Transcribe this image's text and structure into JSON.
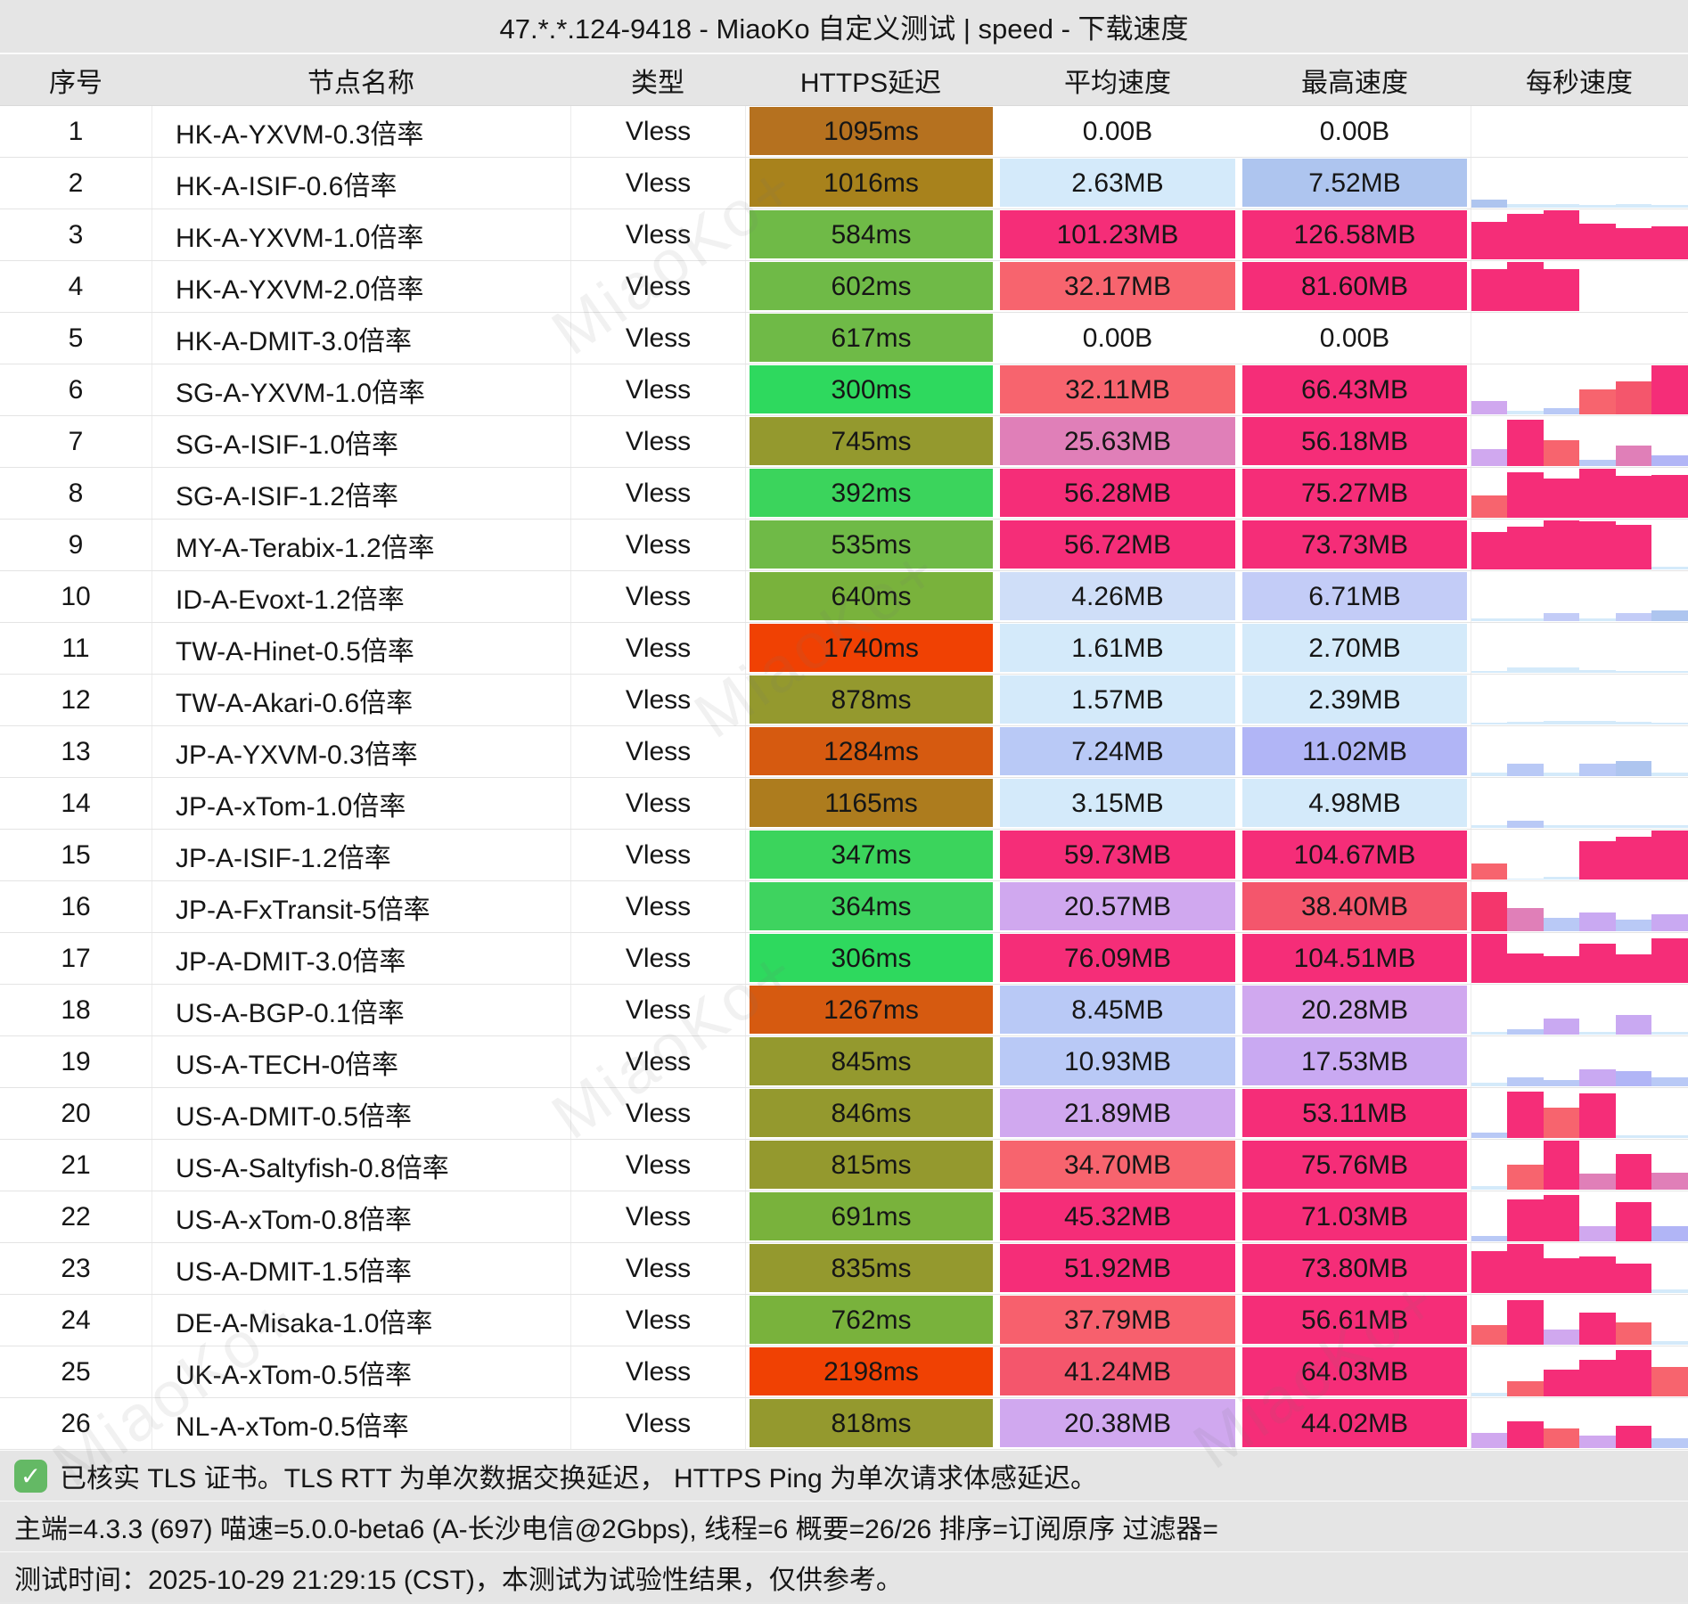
{
  "title": "47.*.*.124-9418 - MiaoKo 自定义测试 | speed - 下载速度",
  "columns": [
    "序号",
    "节点名称",
    "类型",
    "HTTPS延迟",
    "平均速度",
    "最高速度",
    "每秒速度"
  ],
  "watermark": "MiaoKo+",
  "footer": {
    "line1": "已核实 TLS 证书。TLS RTT 为单次数据交换延迟， HTTPS Ping 为单次请求体感延迟。",
    "line2": "主端=4.3.3 (697) 喵速=5.0.0-beta6 (A-长沙电信@2Gbps), 线程=6 概要=26/26 排序=订阅原序 过滤器=",
    "line3": "测试时间：2025-10-29 21:29:15 (CST)，本测试为试验性结果，仅供参考。"
  },
  "rows": [
    {
      "idx": "1",
      "name": "HK-A-YXVM-0.3倍率",
      "type": "Vless",
      "latency": "1095ms",
      "latency_color": "#b5711f",
      "avg": "0.00B",
      "avg_color": "#ffffff",
      "max": "0.00B",
      "max_color": "#ffffff",
      "spark": []
    },
    {
      "idx": "2",
      "name": "HK-A-ISIF-0.6倍率",
      "type": "Vless",
      "latency": "1016ms",
      "latency_color": "#a8821c",
      "avg": "2.63MB",
      "avg_color": "#d4eafa",
      "max": "7.52MB",
      "max_color": "#aec5ef",
      "spark": [
        [
          0.17,
          "#aec5ef"
        ],
        [
          0.08,
          "#d4eafa"
        ],
        [
          0.07,
          "#d4eafa"
        ],
        [
          0.06,
          "#d4eafa"
        ],
        [
          0.07,
          "#d4eafa"
        ],
        [
          0.06,
          "#d4eafa"
        ]
      ]
    },
    {
      "idx": "3",
      "name": "HK-A-YXVM-1.0倍率",
      "type": "Vless",
      "latency": "584ms",
      "latency_color": "#6fba47",
      "avg": "101.23MB",
      "avg_color": "#f52d78",
      "max": "126.58MB",
      "max_color": "#f52d78",
      "spark": [
        [
          0.76,
          "#f52d78"
        ],
        [
          0.92,
          "#f52d78"
        ],
        [
          1,
          "#f52d78"
        ],
        [
          0.72,
          "#f52d78"
        ],
        [
          0.64,
          "#f52d78"
        ],
        [
          0.68,
          "#f52d78"
        ]
      ]
    },
    {
      "idx": "4",
      "name": "HK-A-YXVM-2.0倍率",
      "type": "Vless",
      "latency": "602ms",
      "latency_color": "#6fba47",
      "avg": "32.17MB",
      "avg_color": "#f7646e",
      "max": "81.60MB",
      "max_color": "#f52d78",
      "spark": [
        [
          0.86,
          "#f52d78"
        ],
        [
          1,
          "#f52d78"
        ],
        [
          0.85,
          "#f52d78"
        ],
        [
          0,
          "#ffffff"
        ],
        [
          0,
          "#ffffff"
        ],
        [
          0,
          "#ffffff"
        ]
      ]
    },
    {
      "idx": "5",
      "name": "HK-A-DMIT-3.0倍率",
      "type": "Vless",
      "latency": "617ms",
      "latency_color": "#6fba47",
      "avg": "0.00B",
      "avg_color": "#ffffff",
      "max": "0.00B",
      "max_color": "#ffffff",
      "spark": []
    },
    {
      "idx": "6",
      "name": "SG-A-YXVM-1.0倍率",
      "type": "Vless",
      "latency": "300ms",
      "latency_color": "#2ed95e",
      "avg": "32.11MB",
      "avg_color": "#f7646e",
      "max": "66.43MB",
      "max_color": "#f52d78",
      "spark": [
        [
          0.28,
          "#d0a8ef"
        ],
        [
          0.07,
          "#d4eafa"
        ],
        [
          0.12,
          "#b9c9f6"
        ],
        [
          0.5,
          "#f7646e"
        ],
        [
          0.68,
          "#f4566c"
        ],
        [
          1,
          "#f52d78"
        ]
      ]
    },
    {
      "idx": "7",
      "name": "SG-A-ISIF-1.0倍率",
      "type": "Vless",
      "latency": "745ms",
      "latency_color": "#94992e",
      "avg": "25.63MB",
      "avg_color": "#e07fb8",
      "max": "56.18MB",
      "max_color": "#f52d78",
      "spark": [
        [
          0.35,
          "#d0a8ef"
        ],
        [
          0.95,
          "#f52d78"
        ],
        [
          0.52,
          "#f7646e"
        ],
        [
          0.12,
          "#b9c9f6"
        ],
        [
          0.42,
          "#e07fb8"
        ],
        [
          0.22,
          "#b1b5f6"
        ]
      ]
    },
    {
      "idx": "8",
      "name": "SG-A-ISIF-1.2倍率",
      "type": "Vless",
      "latency": "392ms",
      "latency_color": "#3bd45c",
      "avg": "56.28MB",
      "avg_color": "#f52d78",
      "max": "75.27MB",
      "max_color": "#f52d78",
      "spark": [
        [
          0.46,
          "#f7646e"
        ],
        [
          0.92,
          "#f52d78"
        ],
        [
          0.8,
          "#f52d78"
        ],
        [
          1,
          "#f52d78"
        ],
        [
          0.85,
          "#f52d78"
        ],
        [
          0.88,
          "#f52d78"
        ]
      ]
    },
    {
      "idx": "9",
      "name": "MY-A-Terabix-1.2倍率",
      "type": "Vless",
      "latency": "535ms",
      "latency_color": "#6fba47",
      "avg": "56.72MB",
      "avg_color": "#f52d78",
      "max": "73.73MB",
      "max_color": "#f52d78",
      "spark": [
        [
          0.76,
          "#f52d78"
        ],
        [
          0.88,
          "#f52d78"
        ],
        [
          1,
          "#f52d78"
        ],
        [
          0.98,
          "#f52d78"
        ],
        [
          0.91,
          "#f52d78"
        ],
        [
          0.06,
          "#d4eafa"
        ]
      ]
    },
    {
      "idx": "10",
      "name": "ID-A-Evoxt-1.2倍率",
      "type": "Vless",
      "latency": "640ms",
      "latency_color": "#79b23c",
      "avg": "4.26MB",
      "avg_color": "#cfdef8",
      "max": "6.71MB",
      "max_color": "#c3ccf7",
      "spark": [
        [
          0.06,
          "#d4eafa"
        ],
        [
          0.06,
          "#d4eafa"
        ],
        [
          0.16,
          "#c3ccf7"
        ],
        [
          0.06,
          "#d4eafa"
        ],
        [
          0.17,
          "#c3ccf7"
        ],
        [
          0.21,
          "#aec5ef"
        ]
      ]
    },
    {
      "idx": "11",
      "name": "TW-A-Hinet-0.5倍率",
      "type": "Vless",
      "latency": "1740ms",
      "latency_color": "#f04103",
      "avg": "1.61MB",
      "avg_color": "#d4eafa",
      "max": "2.70MB",
      "max_color": "#d4eafa",
      "spark": [
        [
          0.04,
          "#d4eafa"
        ],
        [
          0.1,
          "#d4eafa"
        ],
        [
          0.1,
          "#d4eafa"
        ],
        [
          0.05,
          "#d4eafa"
        ],
        [
          0.04,
          "#d4eafa"
        ],
        [
          0.04,
          "#d4eafa"
        ]
      ]
    },
    {
      "idx": "12",
      "name": "TW-A-Akari-0.6倍率",
      "type": "Vless",
      "latency": "878ms",
      "latency_color": "#94992e",
      "avg": "1.57MB",
      "avg_color": "#d4eafa",
      "max": "2.39MB",
      "max_color": "#d4eafa",
      "spark": [
        [
          0.04,
          "#d4eafa"
        ],
        [
          0.05,
          "#d4eafa"
        ],
        [
          0.07,
          "#d4eafa"
        ],
        [
          0.07,
          "#d4eafa"
        ],
        [
          0.06,
          "#d4eafa"
        ],
        [
          0.04,
          "#d4eafa"
        ]
      ]
    },
    {
      "idx": "13",
      "name": "JP-A-YXVM-0.3倍率",
      "type": "Vless",
      "latency": "1284ms",
      "latency_color": "#d65a10",
      "avg": "7.24MB",
      "avg_color": "#b9c9f6",
      "max": "11.02MB",
      "max_color": "#b1b5f6",
      "spark": [
        [
          0.08,
          "#d4eafa"
        ],
        [
          0.25,
          "#b9c9f6"
        ],
        [
          0.08,
          "#d4eafa"
        ],
        [
          0.26,
          "#b9c9f6"
        ],
        [
          0.3,
          "#aec5ef"
        ],
        [
          0.08,
          "#d4eafa"
        ]
      ]
    },
    {
      "idx": "14",
      "name": "JP-A-xTom-1.0倍率",
      "type": "Vless",
      "latency": "1165ms",
      "latency_color": "#ad7c1e",
      "avg": "3.15MB",
      "avg_color": "#d4eafa",
      "max": "4.98MB",
      "max_color": "#d4eafa",
      "spark": [
        [
          0.05,
          "#d4eafa"
        ],
        [
          0.14,
          "#b9c9f6"
        ],
        [
          0.06,
          "#d4eafa"
        ],
        [
          0.06,
          "#d4eafa"
        ],
        [
          0.05,
          "#d4eafa"
        ],
        [
          0.05,
          "#d4eafa"
        ]
      ]
    },
    {
      "idx": "15",
      "name": "JP-A-ISIF-1.2倍率",
      "type": "Vless",
      "latency": "347ms",
      "latency_color": "#3bd45c",
      "avg": "59.73MB",
      "avg_color": "#f52d78",
      "max": "104.67MB",
      "max_color": "#f52d78",
      "spark": [
        [
          0.32,
          "#f7646e"
        ],
        [
          0.02,
          "#d4eafa"
        ],
        [
          0.06,
          "#d4eafa"
        ],
        [
          0.78,
          "#f52d78"
        ],
        [
          0.88,
          "#f52d78"
        ],
        [
          1,
          "#f52d78"
        ]
      ]
    },
    {
      "idx": "16",
      "name": "JP-A-FxTransit-5倍率",
      "type": "Vless",
      "latency": "364ms",
      "latency_color": "#3ed35f",
      "avg": "20.57MB",
      "avg_color": "#d0a8ef",
      "max": "38.40MB",
      "max_color": "#f4566c",
      "spark": [
        [
          0.8,
          "#f4366c"
        ],
        [
          0.48,
          "#e07fb8"
        ],
        [
          0.28,
          "#b9c9f6"
        ],
        [
          0.38,
          "#c9a9f2"
        ],
        [
          0.24,
          "#b9c9f6"
        ],
        [
          0.34,
          "#c9a9f2"
        ]
      ]
    },
    {
      "idx": "17",
      "name": "JP-A-DMIT-3.0倍率",
      "type": "Vless",
      "latency": "306ms",
      "latency_color": "#2ed95e",
      "avg": "76.09MB",
      "avg_color": "#f52d78",
      "max": "104.51MB",
      "max_color": "#f52d78",
      "spark": [
        [
          1,
          "#f52d78"
        ],
        [
          0.6,
          "#f52d78"
        ],
        [
          0.55,
          "#f52d78"
        ],
        [
          0.8,
          "#f52d78"
        ],
        [
          0.58,
          "#f52d78"
        ],
        [
          0.9,
          "#f52d78"
        ]
      ]
    },
    {
      "idx": "18",
      "name": "US-A-BGP-0.1倍率",
      "type": "Vless",
      "latency": "1267ms",
      "latency_color": "#d65a10",
      "avg": "8.45MB",
      "avg_color": "#b9c9f6",
      "max": "20.28MB",
      "max_color": "#d0a8ef",
      "spark": [
        [
          0.06,
          "#d4eafa"
        ],
        [
          0.1,
          "#b9c9f6"
        ],
        [
          0.32,
          "#c9a9f2"
        ],
        [
          0.06,
          "#d4eafa"
        ],
        [
          0.4,
          "#c9a9f2"
        ],
        [
          0.06,
          "#d4eafa"
        ]
      ]
    },
    {
      "idx": "19",
      "name": "US-A-TECH-0倍率",
      "type": "Vless",
      "latency": "845ms",
      "latency_color": "#94992e",
      "avg": "10.93MB",
      "avg_color": "#b9c9f6",
      "max": "17.53MB",
      "max_color": "#c9a9f2",
      "spark": [
        [
          0.08,
          "#d4eafa"
        ],
        [
          0.18,
          "#b9c9f6"
        ],
        [
          0.12,
          "#b9c9f6"
        ],
        [
          0.34,
          "#c9a9f2"
        ],
        [
          0.3,
          "#b1b5f6"
        ],
        [
          0.18,
          "#b9c9f6"
        ]
      ]
    },
    {
      "idx": "20",
      "name": "US-A-DMIT-0.5倍率",
      "type": "Vless",
      "latency": "846ms",
      "latency_color": "#94992e",
      "avg": "21.89MB",
      "avg_color": "#d0a8ef",
      "max": "53.11MB",
      "max_color": "#f52d78",
      "spark": [
        [
          0.1,
          "#b9c9f6"
        ],
        [
          0.95,
          "#f52d78"
        ],
        [
          0.62,
          "#f7646e"
        ],
        [
          0.9,
          "#f52d78"
        ],
        [
          0.06,
          "#d4eafa"
        ],
        [
          0.06,
          "#d4eafa"
        ]
      ]
    },
    {
      "idx": "21",
      "name": "US-A-Saltyfish-0.8倍率",
      "type": "Vless",
      "latency": "815ms",
      "latency_color": "#94992e",
      "avg": "34.70MB",
      "avg_color": "#f7646e",
      "max": "75.76MB",
      "max_color": "#f52d78",
      "spark": [
        [
          0.08,
          "#d4eafa"
        ],
        [
          0.5,
          "#f7646e"
        ],
        [
          1,
          "#f52d78"
        ],
        [
          0.33,
          "#e07fb8"
        ],
        [
          0.72,
          "#f52d78"
        ],
        [
          0.35,
          "#e07fb8"
        ]
      ]
    },
    {
      "idx": "22",
      "name": "US-A-xTom-0.8倍率",
      "type": "Vless",
      "latency": "691ms",
      "latency_color": "#79b23c",
      "avg": "45.32MB",
      "avg_color": "#f52d78",
      "max": "71.03MB",
      "max_color": "#f52d78",
      "spark": [
        [
          0.1,
          "#b9c9f6"
        ],
        [
          0.85,
          "#f52d78"
        ],
        [
          0.95,
          "#f52d78"
        ],
        [
          0.3,
          "#d0a8ef"
        ],
        [
          0.8,
          "#f52d78"
        ],
        [
          0.3,
          "#b1b5f6"
        ]
      ]
    },
    {
      "idx": "23",
      "name": "US-A-DMIT-1.5倍率",
      "type": "Vless",
      "latency": "835ms",
      "latency_color": "#94992e",
      "avg": "51.92MB",
      "avg_color": "#f52d78",
      "max": "73.80MB",
      "max_color": "#f52d78",
      "spark": [
        [
          0.85,
          "#f52d78"
        ],
        [
          1,
          "#f52d78"
        ],
        [
          0.7,
          "#f52d78"
        ],
        [
          0.75,
          "#f52d78"
        ],
        [
          0.6,
          "#f52d78"
        ],
        [
          0.08,
          "#d4eafa"
        ]
      ]
    },
    {
      "idx": "24",
      "name": "DE-A-Misaka-1.0倍率",
      "type": "Vless",
      "latency": "762ms",
      "latency_color": "#79b23c",
      "avg": "37.79MB",
      "avg_color": "#f7606d",
      "max": "56.61MB",
      "max_color": "#f52d78",
      "spark": [
        [
          0.4,
          "#f7646e"
        ],
        [
          0.9,
          "#f52d78"
        ],
        [
          0.3,
          "#d0a8ef"
        ],
        [
          0.65,
          "#f52d78"
        ],
        [
          0.45,
          "#f7646e"
        ],
        [
          0.08,
          "#d4eafa"
        ]
      ]
    },
    {
      "idx": "25",
      "name": "UK-A-xTom-0.5倍率",
      "type": "Vless",
      "latency": "2198ms",
      "latency_color": "#f04103",
      "avg": "41.24MB",
      "avg_color": "#f4566c",
      "max": "64.03MB",
      "max_color": "#f52d78",
      "spark": [
        [
          0.08,
          "#d4eafa"
        ],
        [
          0.3,
          "#f7646e"
        ],
        [
          0.55,
          "#f52d78"
        ],
        [
          0.75,
          "#f52d78"
        ],
        [
          0.95,
          "#f52d78"
        ],
        [
          0.6,
          "#f7646e"
        ]
      ]
    },
    {
      "idx": "26",
      "name": "NL-A-xTom-0.5倍率",
      "type": "Vless",
      "latency": "818ms",
      "latency_color": "#94992e",
      "avg": "20.38MB",
      "avg_color": "#d0a8ef",
      "max": "44.02MB",
      "max_color": "#f52d78",
      "spark": [
        [
          0.3,
          "#d0a8ef"
        ],
        [
          0.55,
          "#f52d78"
        ],
        [
          0.4,
          "#f7646e"
        ],
        [
          0.25,
          "#d0a8ef"
        ],
        [
          0.45,
          "#f52d78"
        ],
        [
          0.2,
          "#b9c9f6"
        ]
      ]
    }
  ]
}
